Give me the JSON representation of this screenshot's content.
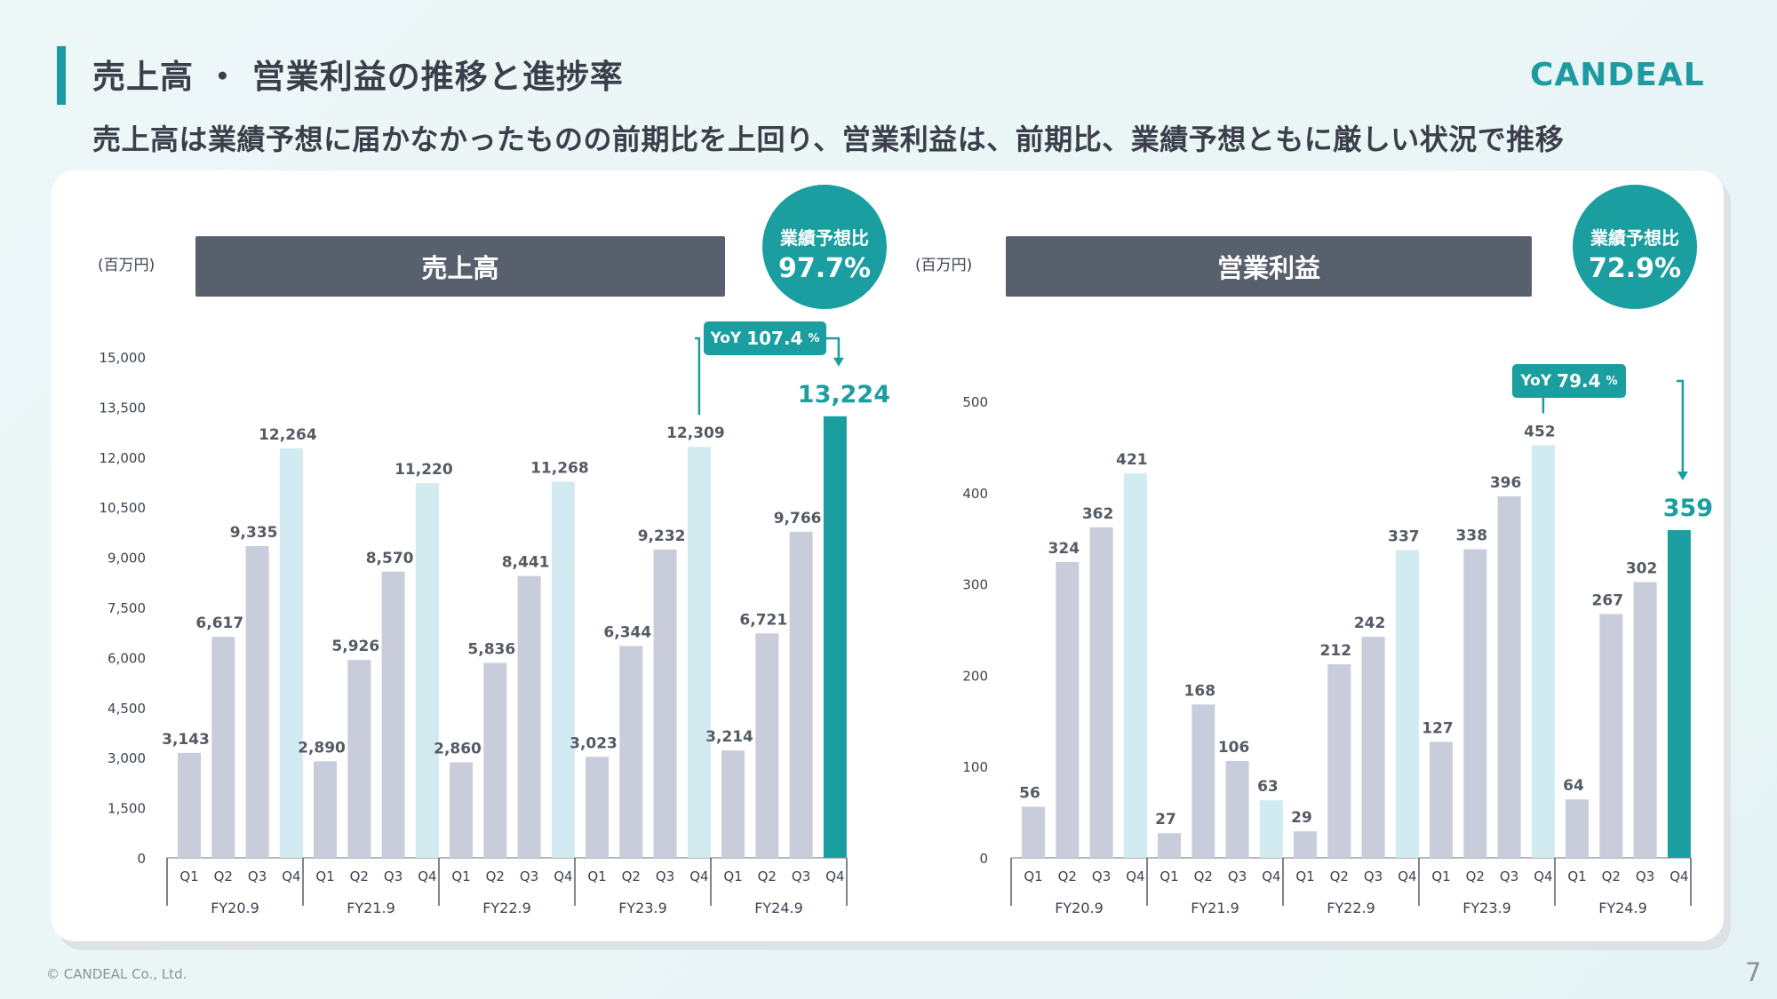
{
  "header": {
    "title": "売上高 ・ 営業利益の推移と進捗率",
    "subtitle": "売上高は業績予想に届かなかったものの前期比を上回り、営業利益は、前期比、業績予想ともに厳しい状況で推移",
    "logo_text": "CANDEAL"
  },
  "footer": {
    "copyright": "© CANDEAL Co., Ltd.",
    "page_number": "7"
  },
  "colors": {
    "accent": "#1a9ea0",
    "bar_gray": "#c9ccdb",
    "bar_light": "#d2ebf0",
    "header_gray": "#57606c"
  },
  "chart_data": [
    {
      "type": "bar",
      "title": "売上高",
      "unit_label": "(百万円)",
      "badge": {
        "label": "業績予想比",
        "value": "97.7%"
      },
      "yoy": {
        "prefix": "YoY",
        "value": "107.4",
        "unit": "%"
      },
      "ylim": [
        0,
        15000
      ],
      "yticks": [
        "0",
        "1,500",
        "3,000",
        "4,500",
        "6,000",
        "7,500",
        "9,000",
        "10,500",
        "12,000",
        "13,500",
        "15,000"
      ],
      "years": [
        "FY20.9",
        "FY21.9",
        "FY22.9",
        "FY23.9",
        "FY24.9"
      ],
      "quarters": [
        "Q1",
        "Q2",
        "Q3",
        "Q4"
      ],
      "values": [
        [
          3143,
          6617,
          9335,
          12264
        ],
        [
          2890,
          5926,
          8570,
          11220
        ],
        [
          2860,
          5836,
          8441,
          11268
        ],
        [
          3023,
          6344,
          9232,
          12309
        ],
        [
          3214,
          6721,
          9766,
          13224
        ]
      ],
      "value_labels": [
        [
          "3,143",
          "6,617",
          "9,335",
          "12,264"
        ],
        [
          "2,890",
          "5,926",
          "8,570",
          "11,220"
        ],
        [
          "2,860",
          "5,836",
          "8,441",
          "11,268"
        ],
        [
          "3,023",
          "6,344",
          "9,232",
          "12,309"
        ],
        [
          "3,214",
          "6,721",
          "9,766",
          "13,224"
        ]
      ]
    },
    {
      "type": "bar",
      "title": "営業利益",
      "unit_label": "(百万円)",
      "badge": {
        "label": "業績予想比",
        "value": "72.9%"
      },
      "yoy": {
        "prefix": "YoY",
        "value": "79.4",
        "unit": "%"
      },
      "ylim": [
        0,
        500
      ],
      "yticks": [
        "0",
        "100",
        "200",
        "300",
        "400",
        "500"
      ],
      "years": [
        "FY20.9",
        "FY21.9",
        "FY22.9",
        "FY23.9",
        "FY24.9"
      ],
      "quarters": [
        "Q1",
        "Q2",
        "Q3",
        "Q4"
      ],
      "values": [
        [
          56,
          324,
          362,
          421
        ],
        [
          27,
          168,
          106,
          63
        ],
        [
          29,
          212,
          242,
          337
        ],
        [
          127,
          338,
          396,
          452
        ],
        [
          64,
          267,
          302,
          359
        ]
      ],
      "value_labels": [
        [
          "56",
          "324",
          "362",
          "421"
        ],
        [
          "27",
          "168",
          "106",
          "63"
        ],
        [
          "29",
          "212",
          "242",
          "337"
        ],
        [
          "127",
          "338",
          "396",
          "452"
        ],
        [
          "64",
          "267",
          "302",
          "359"
        ]
      ]
    }
  ]
}
